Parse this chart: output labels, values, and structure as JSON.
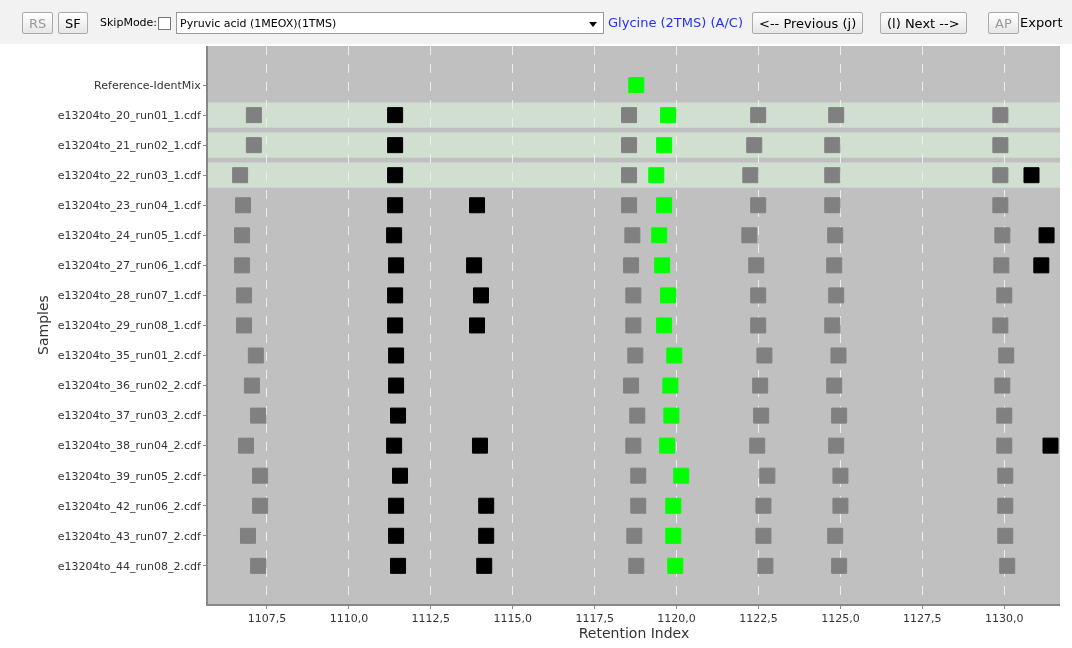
{
  "chart_data": {
    "type": "scatter",
    "orientation": "horizontal",
    "marker": "square",
    "grid": "x",
    "xlabel": "Retention Index",
    "ylabel": "Samples",
    "annotations": [
      "RS",
      "SF",
      "SkipMode:",
      "Pyruvic acid (1MEOX)(1TMS)",
      "Glycine (2TMS) (A/C)",
      "<-- Previous (j)",
      "(l) Next -->",
      "AP",
      "Export"
    ],
    "categories": [
      "Reference-IdentMix",
      "e13204to_20_run01_1.cdf",
      "e13204to_21_run02_1.cdf",
      "e13204to_22_run03_1.cdf",
      "e13204to_23_run04_1.cdf",
      "e13204to_24_run05_1.cdf",
      "e13204to_27_run06_1.cdf",
      "e13204to_28_run07_1.cdf",
      "e13204to_29_run08_1.cdf",
      "e13204to_35_run01_2.cdf",
      "e13204to_36_run02_2.cdf",
      "e13204to_37_run03_2.cdf",
      "e13204to_38_run04_2.cdf",
      "e13204to_39_run05_2.cdf",
      "e13204to_42_run06_2.cdf",
      "e13204to_43_run07_2.cdf",
      "e13204to_44_run08_2.cdf"
    ],
    "xlim": [
      1105.7,
      1131.7
    ],
    "xticks": [
      {
        "value": 1107.5,
        "label": "1107,5"
      },
      {
        "value": 1110,
        "label": "1110,0"
      },
      {
        "value": 1112.5,
        "label": "1112,5"
      },
      {
        "value": 1115,
        "label": "1115,0"
      },
      {
        "value": 1117.5,
        "label": "1117,5"
      },
      {
        "value": 1120,
        "label": "1120,0"
      },
      {
        "value": 1122.5,
        "label": "1122,5"
      },
      {
        "value": 1125,
        "label": "1125,0"
      },
      {
        "value": 1127.5,
        "label": "1127,5"
      },
      {
        "value": 1130,
        "label": "1130,0"
      }
    ],
    "bands": [
      {
        "axis": "y",
        "from": "e13204to_20_run01_1.cdf",
        "to": "e13204to_20_run01_1.cdf",
        "color": "#d0dfd0"
      },
      {
        "axis": "y",
        "from": "e13204to_21_run02_1.cdf",
        "to": "e13204to_21_run02_1.cdf",
        "color": "#d0dfd0"
      },
      {
        "axis": "y",
        "from": "e13204to_22_run03_1.cdf",
        "to": "e13204to_22_run03_1.cdf",
        "color": "#d0dfd0"
      }
    ],
    "series": [
      {
        "color": "#808080",
        "values": [
          null,
          1107.1,
          1107.1,
          1106.68,
          1106.77,
          1106.74,
          1106.74,
          1106.8,
          1106.8,
          1107.16,
          1107.04,
          1107.23,
          1106.86,
          1107.29,
          1107.29,
          1106.92,
          1107.23
        ]
      },
      {
        "color": "#808080",
        "values": [
          null,
          1118.55,
          1118.55,
          1118.55,
          1118.55,
          1118.65,
          1118.61,
          1118.68,
          1118.68,
          1118.74,
          1118.61,
          1118.8,
          1118.68,
          1118.83,
          1118.83,
          1118.71,
          1118.77
        ]
      },
      {
        "color": "#808080",
        "values": [
          null,
          1122.49,
          1122.37,
          1122.25,
          1122.49,
          1122.22,
          1122.43,
          1122.49,
          1122.49,
          1122.68,
          1122.55,
          1122.58,
          1122.46,
          1122.77,
          1122.65,
          1122.65,
          1122.71
        ]
      },
      {
        "color": "#808080",
        "values": [
          null,
          1124.87,
          1124.75,
          1124.75,
          1124.75,
          1124.84,
          1124.81,
          1124.87,
          1124.75,
          1124.94,
          1124.81,
          1124.96,
          1124.87,
          1125.0,
          1125.0,
          1124.84,
          1124.96
        ]
      },
      {
        "color": "#808080",
        "values": [
          null,
          1129.88,
          1129.88,
          1129.88,
          1129.88,
          1129.94,
          1129.91,
          1130.0,
          1129.88,
          1130.06,
          1129.94,
          1130.0,
          1130.0,
          1130.03,
          1130.03,
          1130.03,
          1130.09
        ]
      },
      {
        "color": "#000000",
        "values": [
          null,
          1111.41,
          1111.41,
          1111.41,
          1111.41,
          1111.38,
          1111.44,
          1111.41,
          1111.41,
          1111.44,
          1111.44,
          1111.5,
          1111.38,
          1111.56,
          1111.44,
          1111.44,
          1111.5
        ]
      },
      {
        "color": "#000000",
        "values": [
          null,
          null,
          null,
          null,
          1113.91,
          null,
          1113.82,
          1114.03,
          1113.91,
          null,
          null,
          null,
          1114.0,
          null,
          1114.19,
          1114.19,
          1114.13
        ]
      },
      {
        "color": "#000000",
        "values": [
          null,
          null,
          null,
          1130.83,
          null,
          1131.29,
          1131.13,
          null,
          null,
          null,
          null,
          null,
          1131.41,
          null,
          null,
          null,
          null
        ]
      },
      {
        "color": "#00ff00",
        "values": [
          1118.77,
          1119.74,
          1119.62,
          1119.38,
          1119.62,
          1119.47,
          1119.56,
          1119.74,
          1119.62,
          1119.93,
          1119.81,
          1119.84,
          1119.71,
          1120.14,
          1119.9,
          1119.9,
          1119.96
        ]
      }
    ]
  }
}
